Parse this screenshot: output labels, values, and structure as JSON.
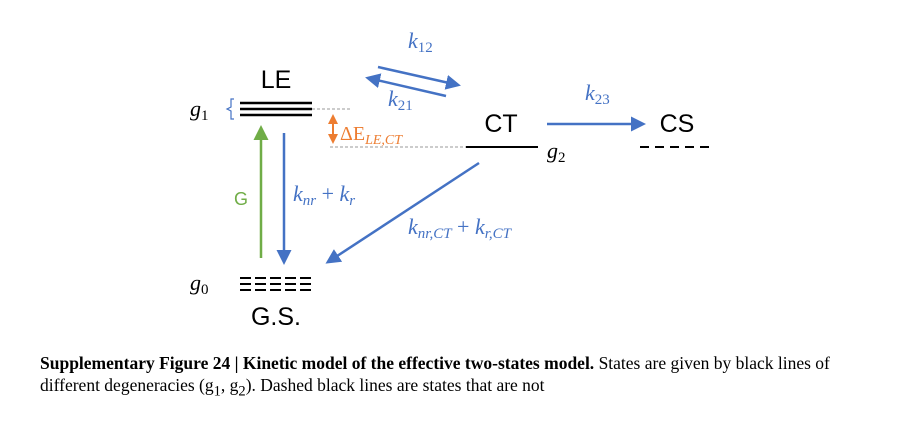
{
  "diagram": {
    "colors": {
      "state": "#000000",
      "arrow_blue": "#4472C4",
      "arrow_green": "#70AD47",
      "delta_orange": "#ED7D31",
      "guide_gray": "#999999",
      "bracket_blue": "#4472C4"
    },
    "states": {
      "le": "LE",
      "ct": "CT",
      "cs": "CS",
      "gs": "G.S."
    },
    "degeneracy": {
      "g1": "g",
      "g1_sub": "1",
      "g2": "g",
      "g2_sub": "2",
      "g0": "g",
      "g0_sub": "0"
    },
    "rates": {
      "k12": "k",
      "k12_sub": "12",
      "k21": "k",
      "k21_sub": "21",
      "k23": "k",
      "k23_sub": "23",
      "knr_kr": {
        "k1": "k",
        "sub1": "nr",
        "plus": " + ",
        "k2": "k",
        "sub2": "r"
      },
      "knrct_krct": {
        "k1": "k",
        "sub1": "nr,CT",
        "plus": " + ",
        "k2": "k",
        "sub2": "r,CT"
      },
      "generation": "G"
    },
    "delta_e": {
      "symbol": "ΔE",
      "sub": "LE,CT"
    }
  },
  "caption": {
    "bold": "Supplementary Figure 24 | Kinetic model of the effective two-states model.",
    "rest": " States are given by black lines of different degeneracies (g",
    "sub1": "1",
    "mid": ", g",
    "sub2": "2",
    "end": "). Dashed black lines are states that are not"
  }
}
